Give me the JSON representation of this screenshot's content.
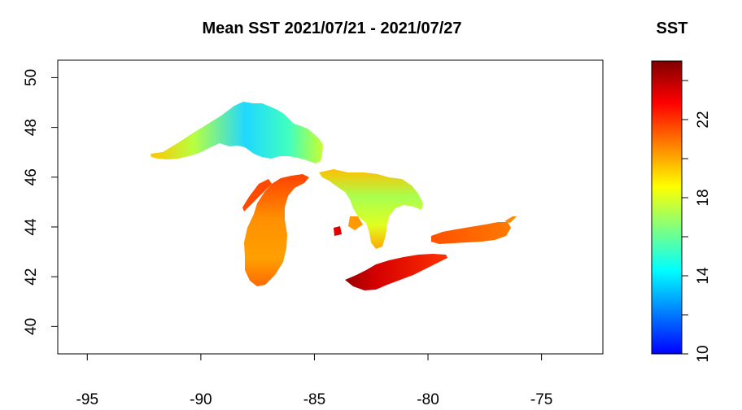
{
  "title": "Mean SST 2021/07/21  -  2021/07/27",
  "map": {
    "xlim": [
      -96.3,
      -72.3
    ],
    "ylim": [
      38.9,
      50.7
    ],
    "x_ticks": [
      -95,
      -90,
      -85,
      -80,
      -75
    ],
    "y_ticks": [
      40,
      42,
      44,
      46,
      48,
      50
    ],
    "x_tick_labels": [
      "-95",
      "-90",
      "-85",
      "-80",
      "-75"
    ],
    "y_tick_labels": [
      "40",
      "42",
      "44",
      "46",
      "48",
      "50"
    ]
  },
  "legend": {
    "title": "SST",
    "min": 10,
    "max": 25,
    "ticks": [
      10,
      12,
      14,
      16,
      18,
      20,
      22,
      24
    ],
    "tick_labels": [
      "10",
      "14",
      "18",
      "22"
    ],
    "colors": [
      "#0000ff",
      "#0080ff",
      "#00ffff",
      "#80ff80",
      "#ffff00",
      "#ff8000",
      "#ff0000",
      "#800000"
    ]
  },
  "chart_data": {
    "type": "heatmap",
    "title": "Mean SST 2021/07/21  -  2021/07/27",
    "xlim": [
      -96.3,
      -72.3
    ],
    "ylim": [
      38.9,
      50.7
    ],
    "colorbar": {
      "title": "SST",
      "range": [
        10,
        25
      ]
    },
    "lakes": [
      {
        "name": "Superior",
        "sst_range": [
          14,
          18
        ]
      },
      {
        "name": "Michigan",
        "sst_range": [
          20,
          23
        ]
      },
      {
        "name": "Huron",
        "sst_range": [
          17,
          21
        ]
      },
      {
        "name": "Erie",
        "sst_range": [
          22,
          25
        ]
      },
      {
        "name": "Ontario",
        "sst_range": [
          20,
          22
        ]
      }
    ]
  }
}
